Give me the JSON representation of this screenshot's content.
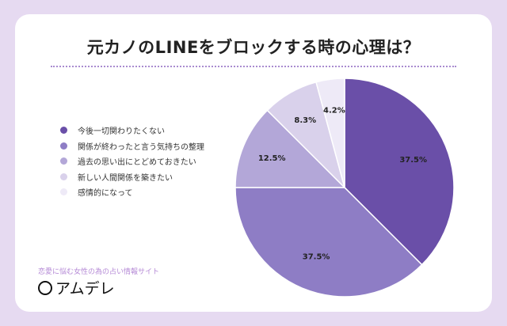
{
  "chart_data": {
    "type": "pie",
    "title": "元カノのLINEをブロックする時の心理は？",
    "start": "top",
    "direction": "clockwise",
    "slices": [
      {
        "label": "今後一切関わりたくない",
        "value": 37.5,
        "display": "37.5%",
        "color": "#6a4fa8"
      },
      {
        "label": "関係が終わったと言う気持ちの整理",
        "value": 37.5,
        "display": "37.5%",
        "color": "#8e7dc5"
      },
      {
        "label": "過去の思い出にとどめておきたい",
        "value": 12.5,
        "display": "12.5%",
        "color": "#b3a7d8"
      },
      {
        "label": "新しい人間関係を築きたい",
        "value": 8.3,
        "display": "8.3%",
        "color": "#d9d1eb"
      },
      {
        "label": "感情的になって",
        "value": 4.2,
        "display": "4.2%",
        "color": "#eeeaf7"
      }
    ],
    "legend": "left"
  },
  "footer": {
    "tagline": "恋愛に悩む女性の為の占い情報サイト",
    "brand": "アムデレ"
  }
}
